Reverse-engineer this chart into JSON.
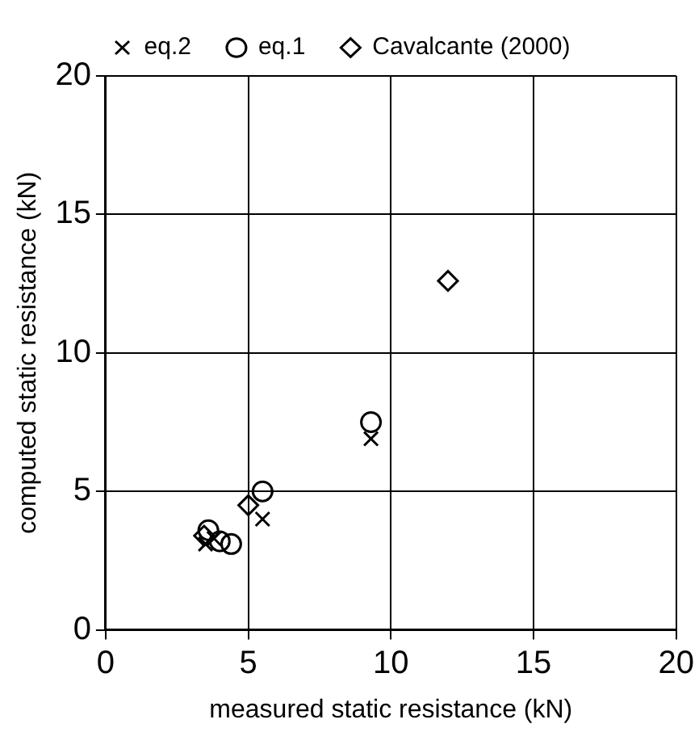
{
  "chart_data": {
    "type": "scatter",
    "xlabel": "measured static resistance (kN)",
    "ylabel": "computed static resistance (kN)",
    "xlim": [
      0,
      20
    ],
    "ylim": [
      0,
      20
    ],
    "xticks": [
      0,
      5,
      10,
      15,
      20
    ],
    "yticks": [
      0,
      5,
      10,
      15,
      20
    ],
    "grid": true,
    "legend": "top",
    "series": [
      {
        "name": "eq.2",
        "color": "#000000",
        "marker": "cross",
        "x": [
          3.5,
          3.8,
          5.5,
          9.3
        ],
        "values": [
          3.1,
          3.3,
          4.0,
          6.9
        ]
      },
      {
        "name": "eq.1",
        "color": "#000000",
        "marker": "circle",
        "x": [
          3.6,
          4.0,
          4.4,
          5.5,
          9.3
        ],
        "values": [
          3.6,
          3.2,
          3.1,
          5.0,
          7.5
        ]
      },
      {
        "name": "Cavalcante (2000)",
        "color": "#000000",
        "marker": "diamond",
        "x": [
          3.45,
          5.0,
          12.0
        ],
        "values": [
          3.4,
          4.5,
          12.6
        ]
      }
    ]
  }
}
